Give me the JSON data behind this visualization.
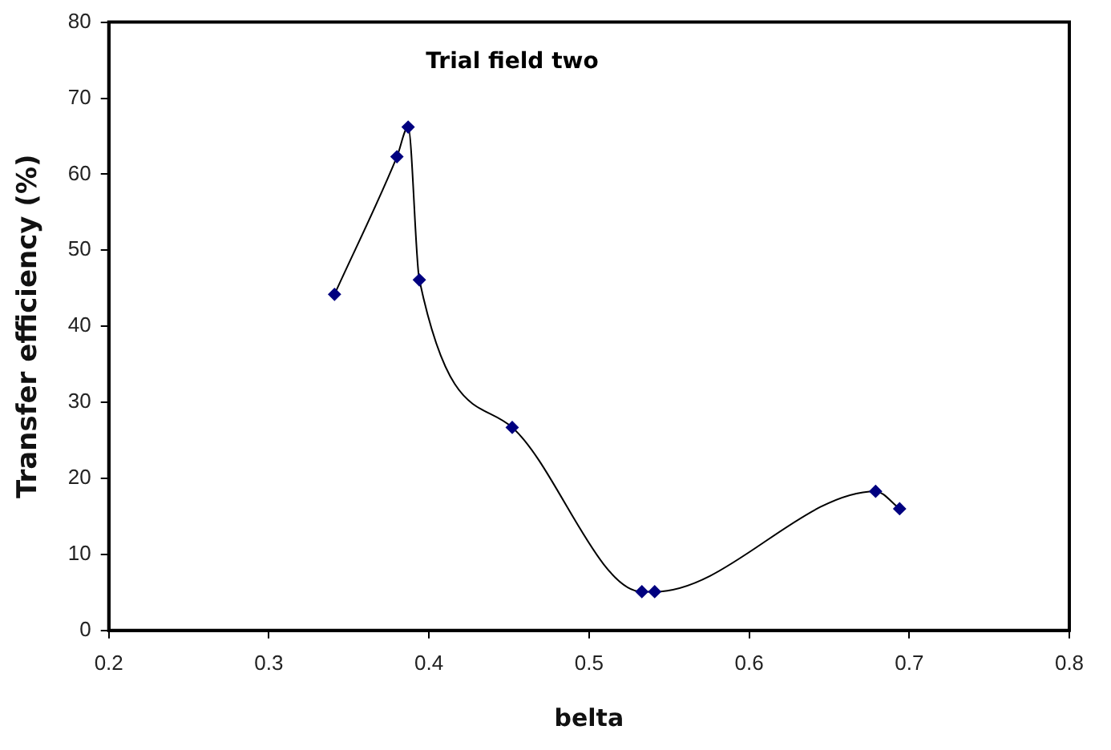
{
  "chart_data": {
    "type": "line",
    "title": "Trial field two",
    "xlabel": "belta",
    "ylabel": "Transfer efficiency (%)",
    "x": [
      0.341,
      0.38,
      0.387,
      0.394,
      0.452,
      0.533,
      0.541,
      0.679,
      0.694
    ],
    "series": [
      {
        "color": "#000080",
        "values": [
          44.2,
          62.3,
          66.2,
          46.1,
          26.7,
          5.1,
          5.1,
          18.3,
          16.0
        ]
      }
    ],
    "xlim": [
      0.2,
      0.8
    ],
    "xticks": [
      0.2,
      0.3,
      0.4,
      0.5,
      0.6,
      0.7,
      0.8
    ],
    "ylim": [
      0,
      80
    ],
    "yticks": [
      0,
      10,
      20,
      30,
      40,
      50,
      60,
      70,
      80
    ],
    "grid": false,
    "legend": false,
    "marker": "diamond",
    "line_style": "solid"
  }
}
